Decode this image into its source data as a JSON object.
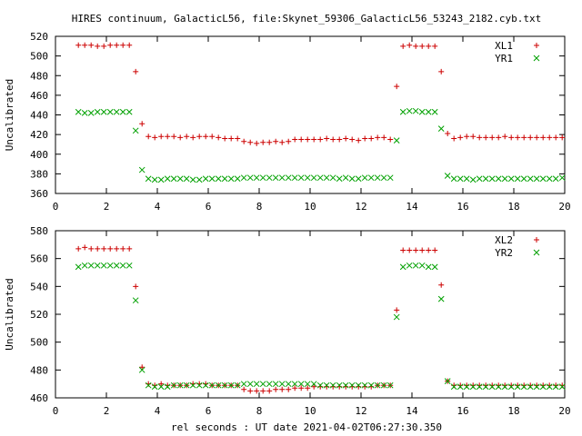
{
  "title": "HIRES continuum, GalacticL56, file:Skynet_59306_GalacticL56_53243_2182.cyb.txt",
  "xlabel": "rel seconds : UT date 2021-04-02T06:27:30.350",
  "colors": {
    "plus": "#cc0000",
    "cross": "#00a000"
  },
  "chart_data": [
    {
      "type": "scatter",
      "ylabel": "Uncalibrated",
      "xlim": [
        0,
        20
      ],
      "ylim": [
        360,
        520
      ],
      "xticks": [
        0,
        2,
        4,
        6,
        8,
        10,
        12,
        14,
        16,
        18,
        20
      ],
      "yticks": [
        360,
        380,
        400,
        420,
        440,
        460,
        480,
        500,
        520
      ],
      "legend_position": "top-right",
      "series": [
        {
          "name": "XL1",
          "marker": "plus",
          "x": [
            0.9,
            1.15,
            1.4,
            1.65,
            1.9,
            2.15,
            2.4,
            2.65,
            2.9,
            3.15,
            3.4,
            3.65,
            3.9,
            4.15,
            4.4,
            4.65,
            4.9,
            5.15,
            5.4,
            5.65,
            5.9,
            6.15,
            6.4,
            6.65,
            6.9,
            7.15,
            7.4,
            7.65,
            7.9,
            8.15,
            8.4,
            8.65,
            8.9,
            9.15,
            9.4,
            9.65,
            9.9,
            10.15,
            10.4,
            10.65,
            10.9,
            11.15,
            11.4,
            11.65,
            11.9,
            12.15,
            12.4,
            12.65,
            12.9,
            13.15,
            13.4,
            13.65,
            13.9,
            14.15,
            14.4,
            14.65,
            14.9,
            15.15,
            15.4,
            15.65,
            15.9,
            16.15,
            16.4,
            16.65,
            16.9,
            17.15,
            17.4,
            17.65,
            17.9,
            18.15,
            18.4,
            18.65,
            18.9,
            19.15,
            19.4,
            19.65,
            19.9
          ],
          "y": [
            511,
            511,
            511,
            510,
            510,
            511,
            511,
            511,
            511,
            484,
            431,
            418,
            417,
            418,
            418,
            418,
            417,
            418,
            417,
            418,
            418,
            418,
            417,
            416,
            416,
            416,
            413,
            412,
            411,
            412,
            412,
            413,
            412,
            413,
            415,
            415,
            415,
            415,
            415,
            416,
            415,
            415,
            416,
            415,
            414,
            416,
            416,
            417,
            417,
            415,
            469,
            510,
            511,
            510,
            510,
            510,
            510,
            484,
            421,
            416,
            417,
            418,
            418,
            417,
            417,
            417,
            417,
            418,
            417,
            417,
            417,
            417,
            417,
            417,
            417,
            417,
            417
          ]
        },
        {
          "name": "YR1",
          "marker": "cross",
          "x": [
            0.9,
            1.15,
            1.4,
            1.65,
            1.9,
            2.15,
            2.4,
            2.65,
            2.9,
            3.15,
            3.4,
            3.65,
            3.9,
            4.15,
            4.4,
            4.65,
            4.9,
            5.15,
            5.4,
            5.65,
            5.9,
            6.15,
            6.4,
            6.65,
            6.9,
            7.15,
            7.4,
            7.65,
            7.9,
            8.15,
            8.4,
            8.65,
            8.9,
            9.15,
            9.4,
            9.65,
            9.9,
            10.15,
            10.4,
            10.65,
            10.9,
            11.15,
            11.4,
            11.65,
            11.9,
            12.15,
            12.4,
            12.65,
            12.9,
            13.15,
            13.4,
            13.65,
            13.9,
            14.15,
            14.4,
            14.65,
            14.9,
            15.15,
            15.4,
            15.65,
            15.9,
            16.15,
            16.4,
            16.65,
            16.9,
            17.15,
            17.4,
            17.65,
            17.9,
            18.15,
            18.4,
            18.65,
            18.9,
            19.15,
            19.4,
            19.65,
            19.9
          ],
          "y": [
            443,
            442,
            442,
            443,
            443,
            443,
            443,
            443,
            443,
            424,
            384,
            375,
            374,
            374,
            375,
            375,
            375,
            375,
            374,
            374,
            375,
            375,
            375,
            375,
            375,
            375,
            376,
            376,
            376,
            376,
            376,
            376,
            376,
            376,
            376,
            376,
            376,
            376,
            376,
            376,
            376,
            375,
            376,
            375,
            375,
            376,
            376,
            376,
            376,
            376,
            414,
            443,
            444,
            444,
            443,
            443,
            443,
            426,
            378,
            375,
            375,
            375,
            374,
            375,
            375,
            375,
            375,
            375,
            375,
            375,
            375,
            375,
            375,
            375,
            375,
            375,
            376
          ]
        }
      ]
    },
    {
      "type": "scatter",
      "ylabel": "Uncalibrated",
      "xlim": [
        0,
        20
      ],
      "ylim": [
        460,
        580
      ],
      "xticks": [
        0,
        2,
        4,
        6,
        8,
        10,
        12,
        14,
        16,
        18,
        20
      ],
      "yticks": [
        460,
        480,
        500,
        520,
        540,
        560,
        580
      ],
      "legend_position": "top-right",
      "series": [
        {
          "name": "XL2",
          "marker": "plus",
          "x": [
            0.9,
            1.15,
            1.4,
            1.65,
            1.9,
            2.15,
            2.4,
            2.65,
            2.9,
            3.15,
            3.4,
            3.65,
            3.9,
            4.15,
            4.4,
            4.65,
            4.9,
            5.15,
            5.4,
            5.65,
            5.9,
            6.15,
            6.4,
            6.65,
            6.9,
            7.15,
            7.4,
            7.65,
            7.9,
            8.15,
            8.4,
            8.65,
            8.9,
            9.15,
            9.4,
            9.65,
            9.9,
            10.15,
            10.4,
            10.65,
            10.9,
            11.15,
            11.4,
            11.65,
            11.9,
            12.15,
            12.4,
            12.65,
            12.9,
            13.15,
            13.4,
            13.65,
            13.9,
            14.15,
            14.4,
            14.65,
            14.9,
            15.15,
            15.4,
            15.65,
            15.9,
            16.15,
            16.4,
            16.65,
            16.9,
            17.15,
            17.4,
            17.65,
            17.9,
            18.15,
            18.4,
            18.65,
            18.9,
            19.15,
            19.4,
            19.65,
            19.9
          ],
          "y": [
            567,
            568,
            567,
            567,
            567,
            567,
            567,
            567,
            567,
            540,
            482,
            470,
            469,
            470,
            469,
            469,
            469,
            469,
            470,
            470,
            470,
            469,
            469,
            469,
            469,
            469,
            466,
            465,
            465,
            465,
            465,
            466,
            466,
            466,
            467,
            467,
            467,
            468,
            468,
            468,
            468,
            468,
            468,
            468,
            468,
            468,
            468,
            469,
            469,
            469,
            523,
            566,
            566,
            566,
            566,
            566,
            566,
            541,
            472,
            469,
            469,
            469,
            469,
            469,
            469,
            469,
            469,
            469,
            469,
            469,
            469,
            469,
            469,
            469,
            469,
            469,
            469
          ]
        },
        {
          "name": "YR2",
          "marker": "cross",
          "x": [
            0.9,
            1.15,
            1.4,
            1.65,
            1.9,
            2.15,
            2.4,
            2.65,
            2.9,
            3.15,
            3.4,
            3.65,
            3.9,
            4.15,
            4.4,
            4.65,
            4.9,
            5.15,
            5.4,
            5.65,
            5.9,
            6.15,
            6.4,
            6.65,
            6.9,
            7.15,
            7.4,
            7.65,
            7.9,
            8.15,
            8.4,
            8.65,
            8.9,
            9.15,
            9.4,
            9.65,
            9.9,
            10.15,
            10.4,
            10.65,
            10.9,
            11.15,
            11.4,
            11.65,
            11.9,
            12.15,
            12.4,
            12.65,
            12.9,
            13.15,
            13.4,
            13.65,
            13.9,
            14.15,
            14.4,
            14.65,
            14.9,
            15.15,
            15.4,
            15.65,
            15.9,
            16.15,
            16.4,
            16.65,
            16.9,
            17.15,
            17.4,
            17.65,
            17.9,
            18.15,
            18.4,
            18.65,
            18.9,
            19.15,
            19.4,
            19.65,
            19.9
          ],
          "y": [
            554,
            555,
            555,
            555,
            555,
            555,
            555,
            555,
            555,
            530,
            480,
            469,
            468,
            468,
            468,
            469,
            469,
            469,
            469,
            469,
            469,
            469,
            469,
            469,
            469,
            469,
            470,
            470,
            470,
            470,
            470,
            470,
            470,
            470,
            470,
            470,
            470,
            470,
            469,
            469,
            469,
            469,
            469,
            469,
            469,
            469,
            469,
            469,
            469,
            469,
            518,
            554,
            555,
            555,
            555,
            554,
            554,
            531,
            472,
            468,
            468,
            468,
            468,
            468,
            468,
            468,
            468,
            468,
            468,
            468,
            468,
            468,
            468,
            468,
            468,
            468,
            468
          ]
        }
      ]
    }
  ]
}
